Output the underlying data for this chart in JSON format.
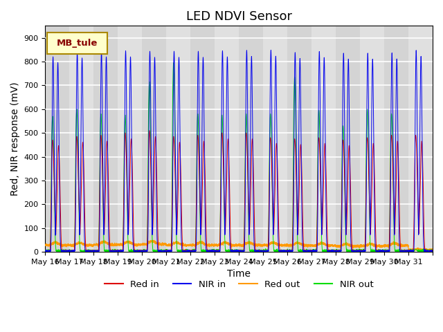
{
  "title": "LED NDVI Sensor",
  "xlabel": "Time",
  "ylabel": "Red, NIR response (mV)",
  "ylim": [
    0,
    950
  ],
  "yticks": [
    0,
    100,
    200,
    300,
    400,
    500,
    600,
    700,
    800,
    900
  ],
  "annotation_label": "MB_tule",
  "legend_entries": [
    "Red in",
    "NIR in",
    "Red out",
    "NIR out"
  ],
  "line_colors": [
    "#dd0000",
    "#0000ee",
    "#ff9900",
    "#00dd00"
  ],
  "background_color": "#ffffff",
  "plot_bg_color": "#e0e0e0",
  "days": 16,
  "day_labels": [
    "May 16",
    "May 17",
    "May 18",
    "May 19",
    "May 20",
    "May 21",
    "May 22",
    "May 23",
    "May 24",
    "May 25",
    "May 26",
    "May 27",
    "May 28",
    "May 29",
    "May 30",
    "May 31"
  ],
  "red_in_peaks": [
    470,
    485,
    490,
    500,
    510,
    485,
    490,
    500,
    500,
    480,
    475,
    480,
    470,
    480,
    490,
    490
  ],
  "nir_in_peaks": [
    820,
    840,
    845,
    845,
    843,
    843,
    843,
    845,
    847,
    848,
    838,
    842,
    835,
    835,
    836,
    847
  ],
  "red_out_base": [
    28,
    27,
    30,
    30,
    32,
    28,
    28,
    28,
    28,
    28,
    27,
    26,
    24,
    24,
    26,
    8
  ],
  "nir_out_peaks": [
    570,
    600,
    580,
    575,
    715,
    795,
    580,
    575,
    580,
    580,
    735,
    595,
    530,
    600,
    580,
    10
  ],
  "samples_per_day": 500
}
